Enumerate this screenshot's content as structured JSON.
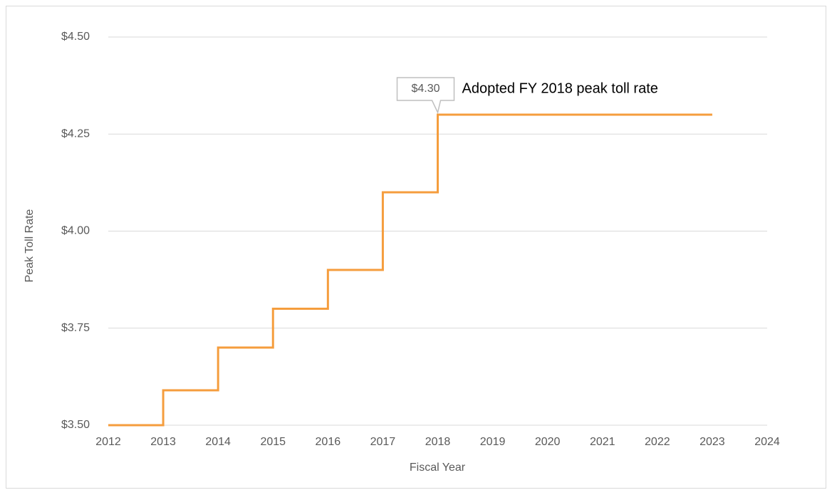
{
  "chart_data": {
    "type": "step",
    "x_label": "Fiscal Year",
    "y_label": "Peak Toll Rate",
    "annotation": "Adopted FY 2018 peak toll rate",
    "series": [
      {
        "name": "Peak Toll Rate",
        "color": "#f59d3d",
        "x": [
          2012,
          2013,
          2014,
          2015,
          2016,
          2017,
          2018,
          2023
        ],
        "values": [
          3.5,
          3.59,
          3.7,
          3.8,
          3.9,
          4.1,
          4.3,
          4.3
        ],
        "value_labels": [
          null,
          null,
          null,
          null,
          null,
          null,
          "$4.30",
          null
        ]
      }
    ],
    "xlim": [
      2012,
      2024
    ],
    "xticks": [
      2012,
      2013,
      2014,
      2015,
      2016,
      2017,
      2018,
      2019,
      2020,
      2021,
      2022,
      2023,
      2024
    ],
    "ylim": [
      3.5,
      4.5
    ],
    "yticks": [
      {
        "value": 3.5,
        "label": "$3.50"
      },
      {
        "value": 3.75,
        "label": "$3.75"
      },
      {
        "value": 4.0,
        "label": "$4.00"
      },
      {
        "value": 4.25,
        "label": "$4.25"
      },
      {
        "value": 4.5,
        "label": "$4.50"
      }
    ],
    "grid": true
  }
}
